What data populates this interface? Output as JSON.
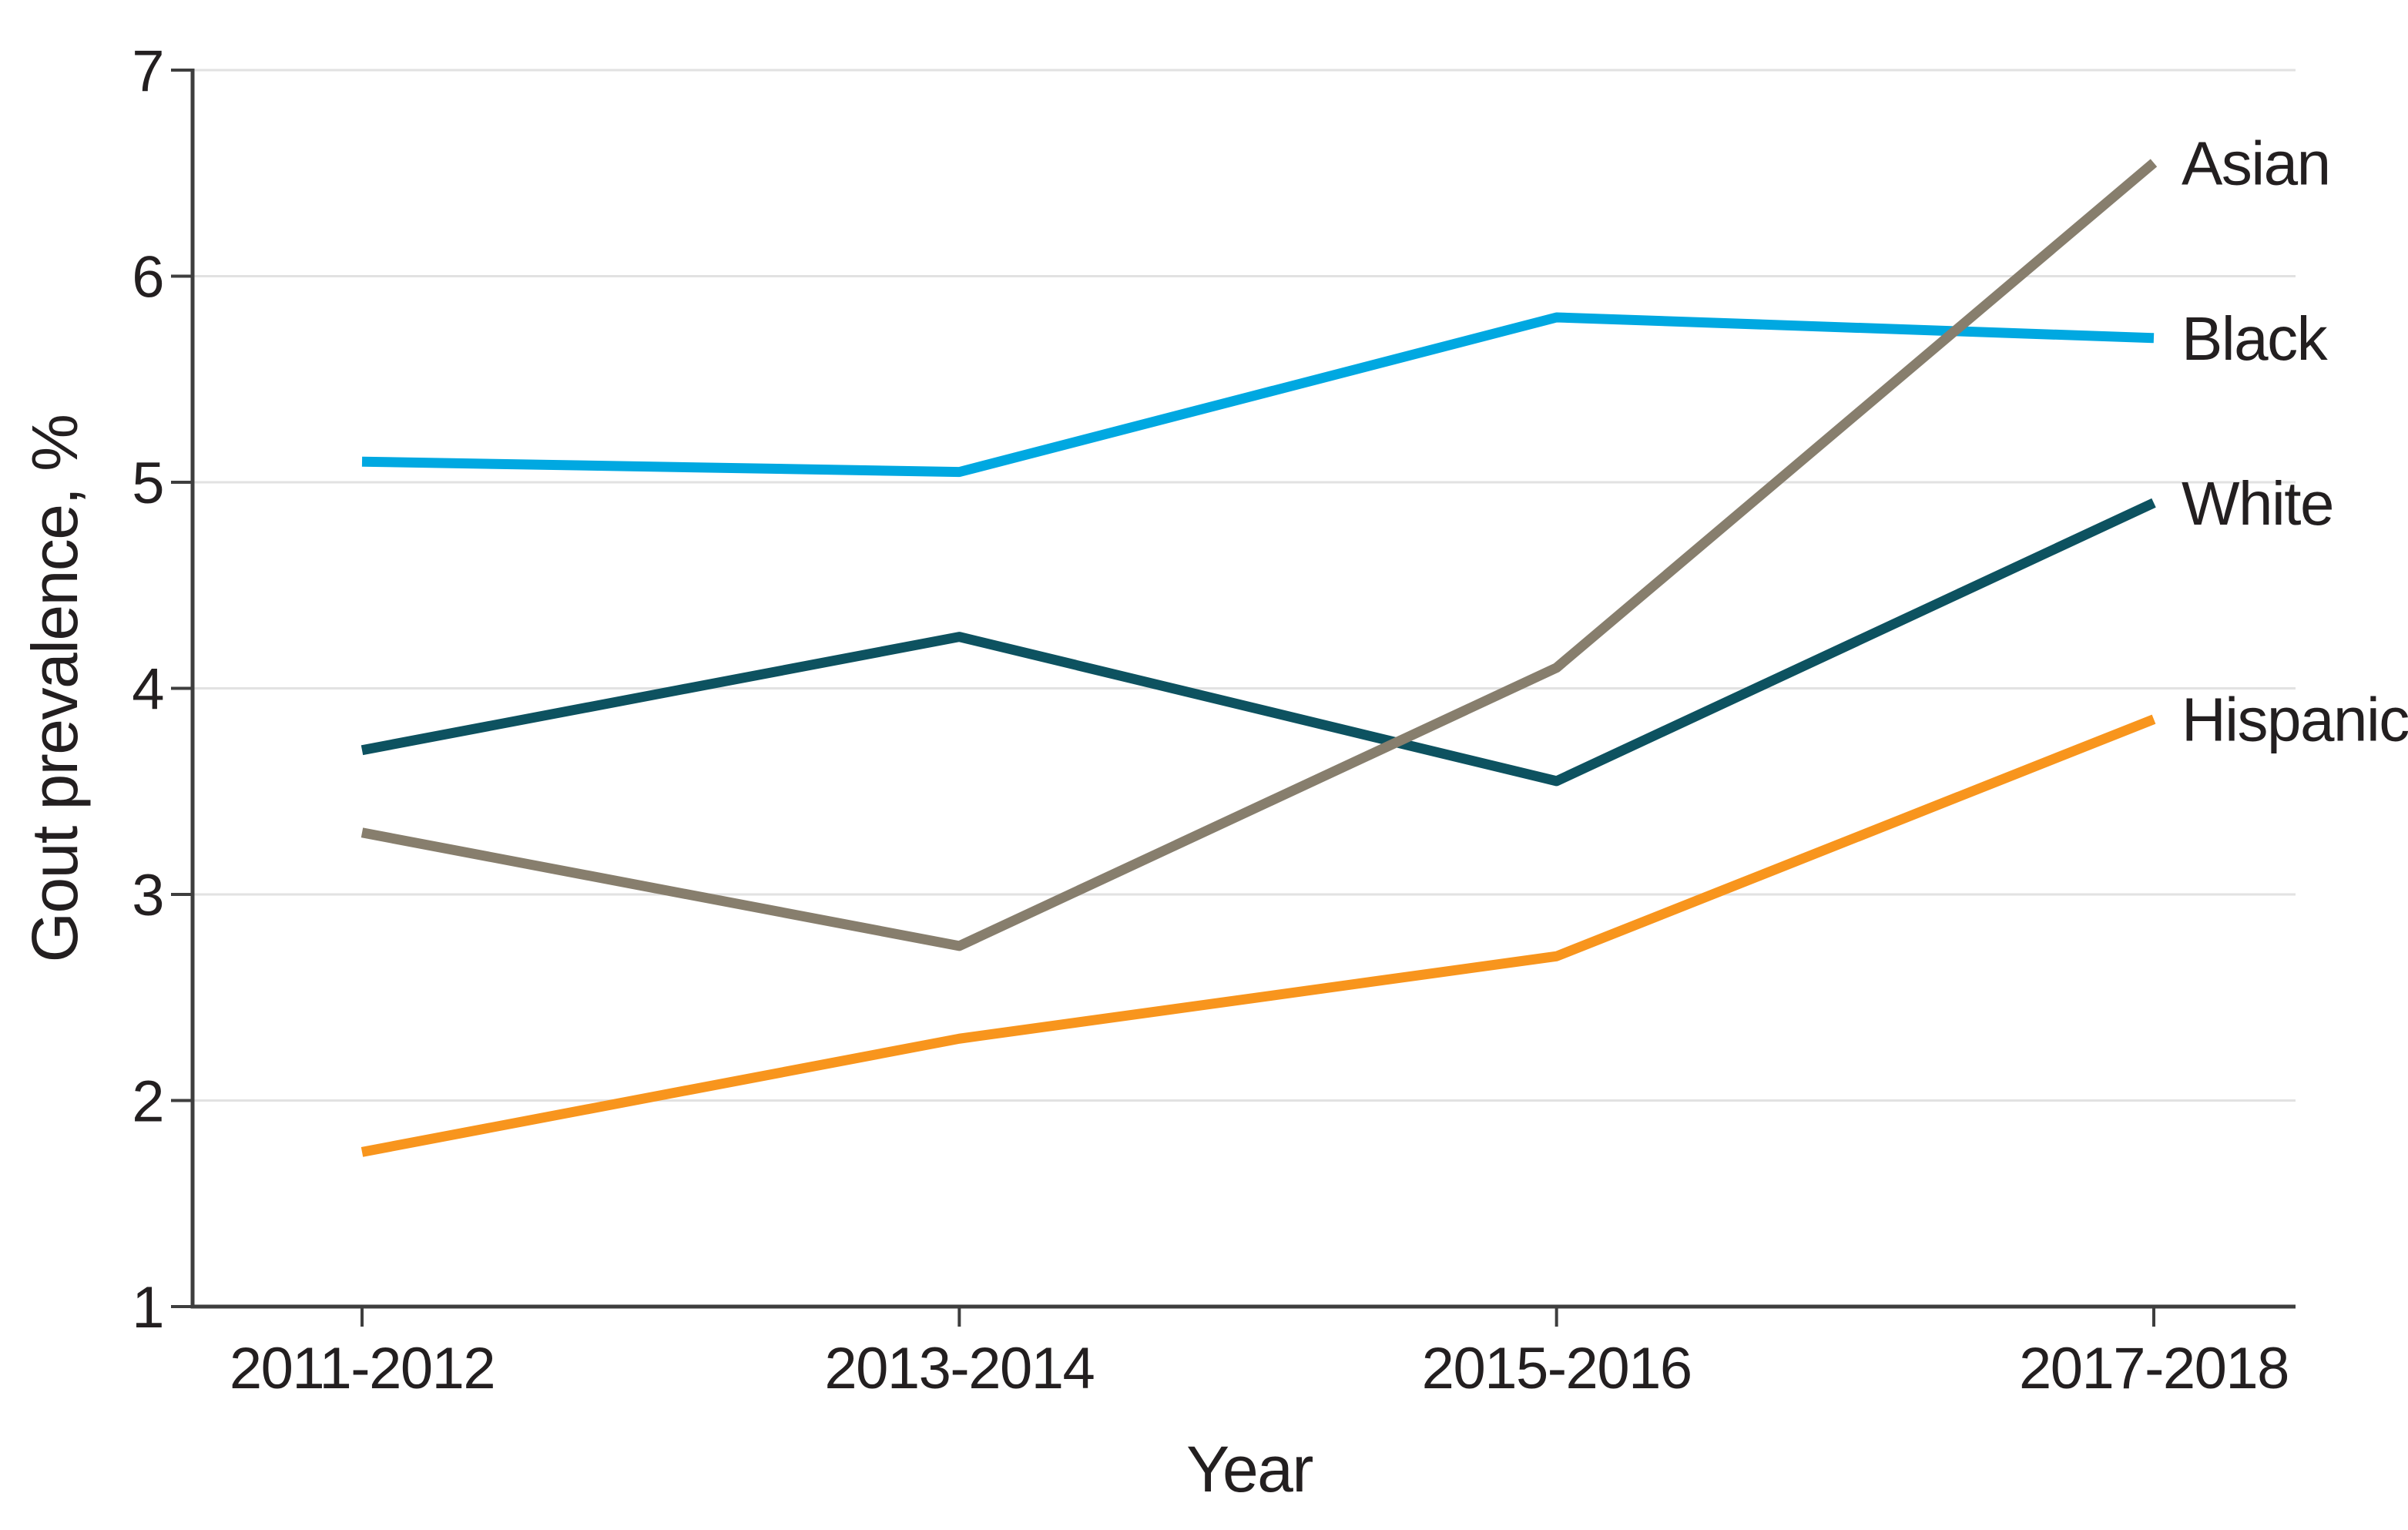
{
  "figure": {
    "background": "#FFFFFF",
    "text_color": "#231F20",
    "axis_color": "#3E3E3E",
    "gridline_color": "#E2E2E2"
  },
  "chart_data": {
    "type": "line",
    "title": "",
    "xlabel": "Year",
    "ylabel": "Gout prevalence, %",
    "categories": [
      "2011-2012",
      "2013-2014",
      "2015-2016",
      "2017-2018"
    ],
    "series": [
      {
        "name": "Asian",
        "color": "#877E6D",
        "values": [
          3.3,
          2.75,
          4.1,
          6.55
        ]
      },
      {
        "name": "Black",
        "color": "#00A8E1",
        "values": [
          5.1,
          5.05,
          5.8,
          5.7
        ]
      },
      {
        "name": "White",
        "color": "#0D5260",
        "values": [
          3.7,
          4.25,
          3.55,
          4.9
        ]
      },
      {
        "name": "Hispanic",
        "color": "#F8951D",
        "values": [
          1.75,
          2.3,
          2.7,
          3.85
        ]
      }
    ],
    "ylim": [
      1,
      7
    ],
    "yticks": [
      1,
      2,
      3,
      4,
      5,
      6,
      7
    ],
    "grid": "horizontal",
    "legend_position": "line-end-labels-right",
    "paint_order": [
      "Black",
      "White",
      "Hispanic",
      "Asian"
    ]
  }
}
